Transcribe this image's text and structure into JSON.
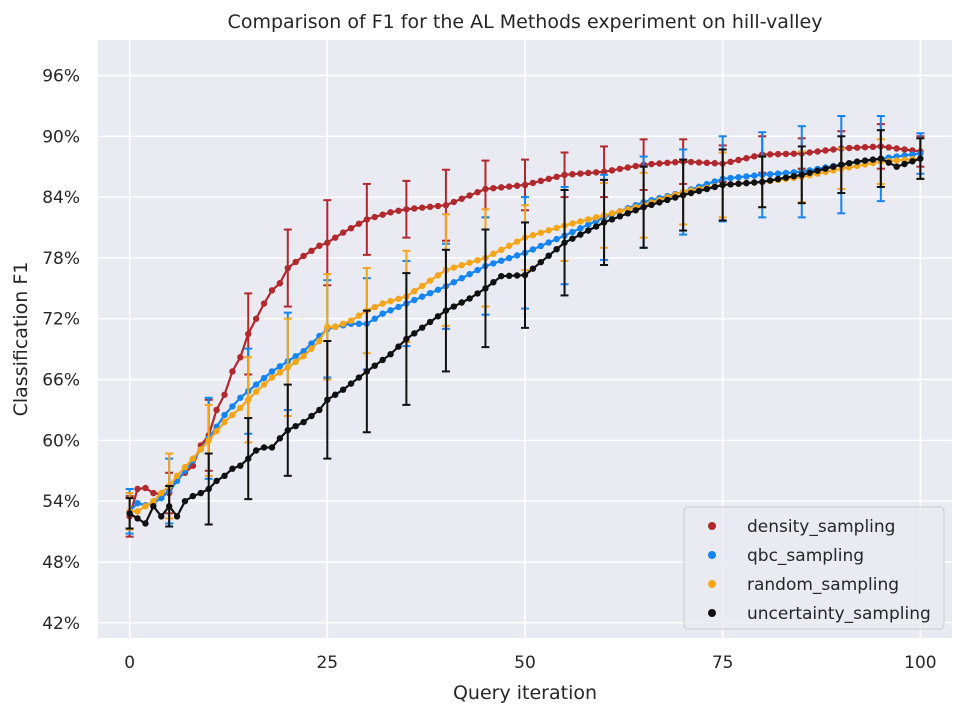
{
  "chart_data": {
    "type": "line",
    "title": "Comparison of F1 for the AL Methods experiment on hill-valley",
    "xlabel": "Query iteration",
    "ylabel": "Classification F1",
    "xlim": [
      -4,
      104
    ],
    "ylim": [
      40.5,
      99.5
    ],
    "xticks": [
      0,
      25,
      50,
      75,
      100
    ],
    "xtick_labels": [
      "0",
      "25",
      "50",
      "75",
      "100"
    ],
    "yticks": [
      42,
      48,
      54,
      60,
      66,
      72,
      78,
      84,
      90,
      96
    ],
    "ytick_labels": [
      "42%",
      "48%",
      "54%",
      "60%",
      "66%",
      "72%",
      "78%",
      "84%",
      "90%",
      "96%"
    ],
    "grid": true,
    "legend_position": "lower-right",
    "error_bar_every": 5,
    "series": [
      {
        "name": "density_sampling",
        "color": "#b1282d",
        "anchors_x": [
          0,
          1,
          2,
          3,
          4,
          5,
          6,
          7,
          8,
          9,
          10,
          11,
          12,
          13,
          14,
          15,
          16,
          17,
          18,
          19,
          20,
          22,
          24,
          25,
          27,
          30,
          33,
          35,
          40,
          45,
          50,
          55,
          60,
          65,
          70,
          75,
          80,
          85,
          90,
          95,
          100
        ],
        "anchors_y": [
          52.5,
          55.2,
          55.3,
          54.8,
          54.7,
          54.8,
          56.2,
          56.8,
          57.5,
          59.5,
          60.5,
          63,
          64.5,
          66.8,
          68.2,
          70.5,
          72,
          73.5,
          74.8,
          75.5,
          77,
          78.2,
          79.2,
          79.5,
          80.5,
          81.8,
          82.5,
          82.8,
          83.2,
          84.8,
          85.2,
          86.2,
          86.5,
          87.2,
          87.5,
          87.3,
          88.2,
          88.3,
          88.8,
          89,
          88.5
        ],
        "errors": [
          2,
          2,
          3.5,
          4,
          3.8,
          4.2,
          3.5,
          2.8,
          3.5,
          2.8,
          2.5,
          2.2,
          2.5,
          2.5,
          2.2,
          1.8,
          1.8,
          1.5,
          1.7,
          2.2,
          1.5
        ]
      },
      {
        "name": "qbc_sampling",
        "color": "#1585f3",
        "anchors_x": [
          0,
          1,
          2,
          3,
          4,
          5,
          6,
          8,
          10,
          12,
          14,
          16,
          18,
          20,
          22,
          24,
          25,
          26,
          28,
          30,
          32,
          35,
          40,
          45,
          50,
          55,
          60,
          65,
          70,
          75,
          80,
          85,
          90,
          95,
          100
        ],
        "anchors_y": [
          53,
          53.8,
          53.6,
          53.8,
          54.3,
          55,
          56,
          58,
          60.2,
          62.5,
          64.2,
          65.5,
          66.8,
          67.8,
          68.8,
          70.3,
          71,
          71.2,
          71.5,
          71.5,
          72.5,
          73.5,
          75.2,
          77.2,
          78.5,
          80.2,
          82,
          83.5,
          84.5,
          85.8,
          86.2,
          86.5,
          87.2,
          87.8,
          88.3
        ],
        "errors": [
          2.2,
          3.2,
          4,
          4.2,
          4.8,
          4.8,
          4.5,
          4.2,
          4.2,
          4.8,
          5.5,
          4.8,
          4.2,
          4.5,
          4.2,
          4.2,
          4.2,
          4.5,
          4.8,
          4.2,
          2
        ]
      },
      {
        "name": "random_sampling",
        "color": "#f5a518",
        "anchors_x": [
          0,
          1,
          2,
          3,
          4,
          5,
          6,
          8,
          10,
          12,
          14,
          16,
          18,
          20,
          22,
          24,
          25,
          26,
          28,
          30,
          32,
          35,
          40,
          45,
          50,
          55,
          60,
          65,
          70,
          75,
          80,
          85,
          90,
          95,
          100
        ],
        "anchors_y": [
          53,
          53,
          53.5,
          54,
          54.8,
          55.5,
          56.5,
          58.2,
          60,
          61.8,
          63.2,
          64.8,
          66.2,
          67.2,
          68.3,
          69.8,
          71.2,
          71.2,
          71.8,
          72.8,
          73.5,
          74.2,
          76.8,
          78,
          80,
          81.2,
          82.2,
          83.2,
          84.5,
          85.2,
          85.5,
          86,
          86.8,
          87.5,
          87.8
        ],
        "errors": [
          1.8,
          3.2,
          3.5,
          4.2,
          4.8,
          5.2,
          4.2,
          4.5,
          5.5,
          4.8,
          3.2,
          3.5,
          3.2,
          3.2,
          3.2,
          3.2,
          2.5,
          2.5,
          2,
          2.2,
          2
        ]
      },
      {
        "name": "uncertainty_sampling",
        "color": "#111111",
        "anchors_x": [
          0,
          1,
          2,
          3,
          4,
          5,
          6,
          7,
          8,
          9,
          10,
          11,
          12,
          13,
          14,
          15,
          16,
          17,
          18,
          19,
          20,
          22,
          24,
          25,
          27,
          30,
          33,
          35,
          40,
          43,
          45,
          47,
          50,
          55,
          60,
          65,
          70,
          75,
          80,
          85,
          90,
          92,
          95,
          97,
          100
        ],
        "anchors_y": [
          52.8,
          52.3,
          51.8,
          53.5,
          52.5,
          53.5,
          52.5,
          54,
          54.5,
          54.8,
          55.2,
          56,
          56.5,
          57.2,
          57.5,
          58.2,
          59,
          59.3,
          59.3,
          60.2,
          61,
          61.8,
          63,
          64,
          65,
          66.8,
          68.5,
          70,
          72.8,
          74,
          75,
          76.2,
          76.3,
          79.5,
          81.5,
          83,
          84.2,
          85.2,
          85.5,
          86.2,
          87.2,
          87.5,
          87.8,
          87,
          87.8
        ],
        "errors": [
          1.5,
          2,
          3.5,
          4,
          4.5,
          5.8,
          6,
          6.5,
          6,
          5.8,
          5.2,
          5.2,
          4.2,
          4,
          3.5,
          3.5,
          2.5,
          2.8,
          2.8,
          2.8,
          2
        ]
      }
    ]
  }
}
